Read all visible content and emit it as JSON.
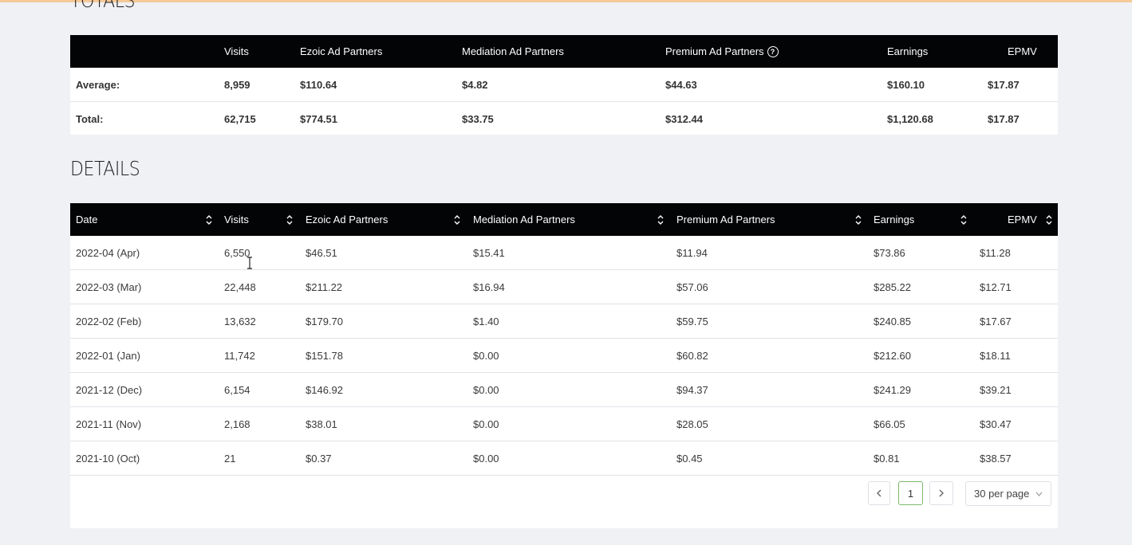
{
  "totals": {
    "title": "TOTALS",
    "headers": [
      "",
      "Visits",
      "Ezoic Ad Partners",
      "Mediation Ad Partners",
      "Premium Ad Partners",
      "Earnings",
      "EPMV"
    ],
    "rows": [
      [
        "Average:",
        "8,959",
        "$110.64",
        "$4.82",
        "$44.63",
        "$160.10",
        "$17.87"
      ],
      [
        "Total:",
        "62,715",
        "$774.51",
        "$33.75",
        "$312.44",
        "$1,120.68",
        "$17.87"
      ]
    ],
    "help_icon": "question-circle-icon"
  },
  "details": {
    "title": "DETAILS",
    "headers": [
      "Date",
      "Visits",
      "Ezoic Ad Partners",
      "Mediation Ad Partners",
      "Premium Ad Partners",
      "Earnings",
      "EPMV"
    ],
    "rows": [
      [
        "2022-04 (Apr)",
        "6,550",
        "$46.51",
        "$15.41",
        "$11.94",
        "$73.86",
        "$11.28"
      ],
      [
        "2022-03 (Mar)",
        "22,448",
        "$211.22",
        "$16.94",
        "$57.06",
        "$285.22",
        "$12.71"
      ],
      [
        "2022-02 (Feb)",
        "13,632",
        "$179.70",
        "$1.40",
        "$59.75",
        "$240.85",
        "$17.67"
      ],
      [
        "2022-01 (Jan)",
        "11,742",
        "$151.78",
        "$0.00",
        "$60.82",
        "$212.60",
        "$18.11"
      ],
      [
        "2021-12 (Dec)",
        "6,154",
        "$146.92",
        "$0.00",
        "$94.37",
        "$241.29",
        "$39.21"
      ],
      [
        "2021-11 (Nov)",
        "2,168",
        "$38.01",
        "$0.00",
        "$28.05",
        "$66.05",
        "$30.47"
      ],
      [
        "2021-10 (Oct)",
        "21",
        "$0.37",
        "$0.00",
        "$0.45",
        "$0.81",
        "$38.57"
      ]
    ],
    "sort_icon": "sort-up-down-icon"
  },
  "pagination": {
    "prev_icon": "chevron-left-icon",
    "current_page": "1",
    "next_icon": "chevron-right-icon",
    "per_page": "30 per page",
    "dropdown_icon": "chevron-down-icon"
  },
  "colors": {
    "header_bg": "#020406",
    "page_bg": "#f0f1f5",
    "top_strip": "#f6c999",
    "active_page_border": "#7bb86a"
  }
}
